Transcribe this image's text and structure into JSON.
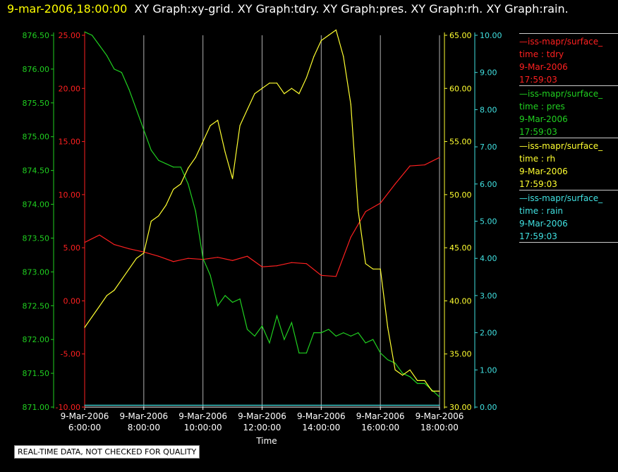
{
  "header": {
    "timestamp": "9-mar-2006,18:00:00",
    "graphs": "XY Graph:xy-grid.  XY Graph:tdry.  XY Graph:pres.  XY Graph:rh.  XY Graph:rain."
  },
  "colors": {
    "tdry": "#ff2020",
    "pres": "#20d020",
    "rh": "#ffff30",
    "rain": "#40e0e0",
    "background": "#000000",
    "grid": "#b0b0b0"
  },
  "legend": [
    {
      "series": "tdry",
      "line1": "—iss-mapr/surface_",
      "line2": "time : tdry",
      "line3": "9-Mar-2006",
      "line4": "17:59:03"
    },
    {
      "series": "pres",
      "line1": "—iss-mapr/surface_",
      "line2": "time : pres",
      "line3": "9-Mar-2006",
      "line4": "17:59:03"
    },
    {
      "series": "rh",
      "line1": "—iss-mapr/surface_",
      "line2": "time : rh",
      "line3": "9-Mar-2006",
      "line4": "17:59:03"
    },
    {
      "series": "rain",
      "line1": "—iss-mapr/surface_",
      "line2": "time : rain",
      "line3": "9-Mar-2006",
      "line4": "17:59:03"
    }
  ],
  "footer": {
    "quality_note": "REAL-TIME DATA, NOT CHECKED FOR QUALITY"
  },
  "chart_data": {
    "type": "line",
    "xlabel": "Time",
    "x_range_hours": [
      6,
      18
    ],
    "x_tick_labels": [
      {
        "date": "9-Mar-2006",
        "time": "6:00:00",
        "hour": 6
      },
      {
        "date": "9-Mar-2006",
        "time": "8:00:00",
        "hour": 8
      },
      {
        "date": "9-Mar-2006",
        "time": "10:00:00",
        "hour": 10
      },
      {
        "date": "9-Mar-2006",
        "time": "12:00:00",
        "hour": 12
      },
      {
        "date": "9-Mar-2006",
        "time": "14:00:00",
        "hour": 14
      },
      {
        "date": "9-Mar-2006",
        "time": "16:00:00",
        "hour": 16
      },
      {
        "date": "9-Mar-2006",
        "time": "18:00:00",
        "hour": 18
      }
    ],
    "grid": true,
    "axes": {
      "pres": {
        "min": 871.0,
        "max": 876.5,
        "ticks": [
          "871.00",
          "871.50",
          "872.00",
          "872.50",
          "873.00",
          "873.50",
          "874.00",
          "874.50",
          "875.00",
          "875.50",
          "876.00",
          "876.50"
        ]
      },
      "tdry": {
        "min": -10,
        "max": 25,
        "ticks": [
          "-10.00",
          "-5.00",
          "0.00",
          "5.00",
          "10.00",
          "15.00",
          "20.00",
          "25.00"
        ]
      },
      "rh": {
        "min": 30,
        "max": 65,
        "ticks": [
          "30.00",
          "35.00",
          "40.00",
          "45.00",
          "50.00",
          "55.00",
          "60.00",
          "65.00"
        ]
      },
      "rain": {
        "min": 0,
        "max": 10,
        "ticks": [
          "0.00",
          "1.00",
          "2.00",
          "3.00",
          "4.00",
          "5.00",
          "6.00",
          "7.00",
          "8.00",
          "9.00",
          "10.00"
        ]
      }
    },
    "series": [
      {
        "name": "tdry",
        "x": [
          6,
          6.5,
          7,
          7.5,
          8,
          8.5,
          9,
          9.5,
          10,
          10.5,
          11,
          11.5,
          12,
          12.5,
          13,
          13.5,
          14,
          14.5,
          15,
          15.5,
          16,
          16.5,
          17,
          17.5,
          18
        ],
        "y": [
          5.5,
          6.2,
          5.3,
          4.9,
          4.6,
          4.2,
          3.7,
          4.0,
          3.9,
          4.1,
          3.8,
          4.2,
          3.2,
          3.3,
          3.6,
          3.5,
          2.4,
          2.3,
          6.0,
          8.4,
          9.2,
          11.0,
          12.7,
          12.8,
          13.5
        ]
      },
      {
        "name": "pres",
        "x": [
          6,
          6.25,
          6.5,
          6.75,
          7,
          7.25,
          7.5,
          7.75,
          8,
          8.25,
          8.5,
          8.75,
          9,
          9.25,
          9.5,
          9.75,
          10,
          10.25,
          10.5,
          10.75,
          11,
          11.25,
          11.5,
          11.75,
          12,
          12.25,
          12.5,
          12.75,
          13,
          13.25,
          13.5,
          13.75,
          14,
          14.25,
          14.5,
          14.75,
          15,
          15.25,
          15.5,
          15.75,
          16,
          16.25,
          16.5,
          16.75,
          17,
          17.25,
          17.5,
          17.75,
          18
        ],
        "y": [
          876.55,
          876.5,
          876.35,
          876.2,
          876.0,
          875.95,
          875.7,
          875.4,
          875.1,
          874.8,
          874.65,
          874.6,
          874.55,
          874.55,
          874.3,
          873.9,
          873.2,
          872.95,
          872.5,
          872.65,
          872.55,
          872.6,
          872.15,
          872.05,
          872.2,
          871.95,
          872.35,
          872.0,
          872.25,
          871.8,
          871.8,
          872.1,
          872.1,
          872.15,
          872.05,
          872.1,
          872.05,
          872.1,
          871.95,
          872.0,
          871.8,
          871.7,
          871.65,
          871.5,
          871.45,
          871.35,
          871.35,
          871.25,
          871.15
        ]
      },
      {
        "name": "rh",
        "x": [
          6,
          6.25,
          6.5,
          6.75,
          7,
          7.25,
          7.5,
          7.75,
          8,
          8.25,
          8.5,
          8.75,
          9,
          9.25,
          9.5,
          9.75,
          10,
          10.25,
          10.5,
          10.75,
          11,
          11.25,
          11.5,
          11.75,
          12,
          12.25,
          12.5,
          12.75,
          13,
          13.25,
          13.5,
          13.75,
          14,
          14.25,
          14.5,
          14.75,
          15,
          15.25,
          15.5,
          15.75,
          16,
          16.25,
          16.5,
          16.75,
          17,
          17.25,
          17.5,
          17.75,
          18
        ],
        "y": [
          37.5,
          38.5,
          39.5,
          40.5,
          41.0,
          42.0,
          43.0,
          44.0,
          44.5,
          47.5,
          48.0,
          49.0,
          50.5,
          51.0,
          52.5,
          53.5,
          55.0,
          56.5,
          57.0,
          54.0,
          51.5,
          56.5,
          58.0,
          59.5,
          60.0,
          60.5,
          60.5,
          59.5,
          60.0,
          59.5,
          61.0,
          63.0,
          64.5,
          65.0,
          65.5,
          63.0,
          58.5,
          48.5,
          43.5,
          43.0,
          43.0,
          37.5,
          33.5,
          33.0,
          33.5,
          32.5,
          32.5,
          31.5,
          31.5
        ]
      },
      {
        "name": "rain",
        "x": [
          6,
          18
        ],
        "y": [
          0.05,
          0.05
        ]
      }
    ]
  }
}
